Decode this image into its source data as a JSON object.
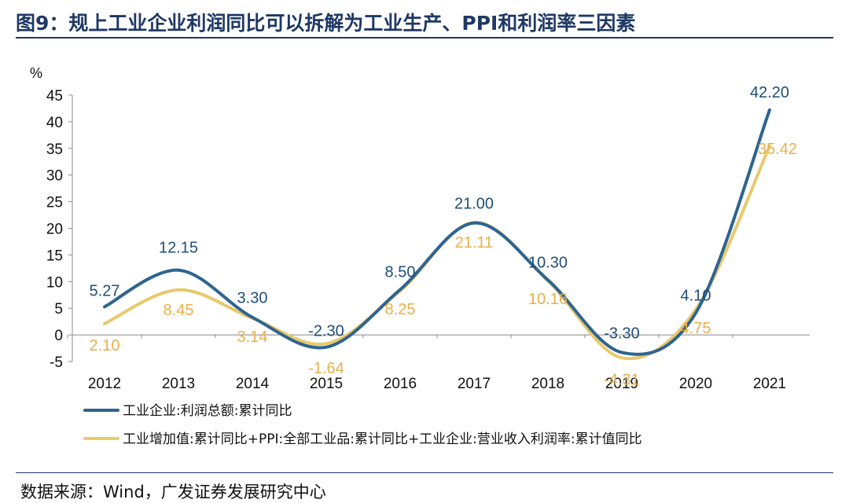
{
  "figure": {
    "title": "图9：规上工业企业利润同比可以拆解为工业生产、PPI和利润率三因素",
    "source": "数据来源：Wind，广发证券发展研究中心"
  },
  "chart_data": {
    "type": "line",
    "y_unit_label": "%",
    "ylim": [
      -5,
      45
    ],
    "y_ticks": [
      -5,
      0,
      5,
      10,
      15,
      20,
      25,
      30,
      35,
      40,
      45
    ],
    "categories": [
      "2012",
      "2013",
      "2014",
      "2015",
      "2016",
      "2017",
      "2018",
      "2019",
      "2020",
      "2021"
    ],
    "grid": false,
    "legend_position": "bottom",
    "series": [
      {
        "name": "工业企业:利润总额:累计同比",
        "color": "#2e6490",
        "values": [
          5.27,
          12.15,
          3.3,
          -2.3,
          8.5,
          21.0,
          10.3,
          -3.3,
          4.1,
          42.2
        ],
        "labels": [
          "5.27",
          "12.15",
          "3.30",
          "-2.30",
          "8.50",
          "21.00",
          "10.30",
          "-3.30",
          "4.10",
          "42.20"
        ]
      },
      {
        "name": "工业增加值:累计同比+PPI:全部工业品:累计同比+工业企业:营业收入利润率:累计值同比",
        "color": "#e8c96c",
        "label_color": "#e8b04a",
        "values": [
          2.1,
          8.45,
          3.14,
          -1.64,
          8.25,
          21.11,
          10.16,
          -4.31,
          4.75,
          35.42
        ],
        "labels": [
          "2.10",
          "8.45",
          "3.14",
          "-1.64",
          "8.25",
          "21.11",
          "10.16",
          "-4.31",
          "4.75",
          "35.42"
        ]
      }
    ]
  }
}
